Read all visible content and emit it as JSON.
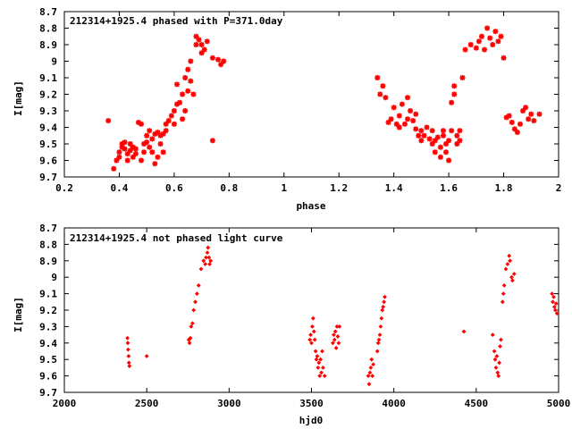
{
  "chart_data": [
    {
      "type": "scatter",
      "title": "212314+1925.4 phased with P=371.0day",
      "xlabel": "phase",
      "ylabel": "I[mag]",
      "xlim": [
        0.2,
        2
      ],
      "ylim": [
        9.7,
        8.7
      ],
      "y_inverted": true,
      "xticks": [
        "0.2",
        "0.4",
        "0.6",
        "0.8",
        "1",
        "1.2",
        "1.4",
        "1.6",
        "1.8",
        "2"
      ],
      "yticks": [
        "8.7",
        "8.8",
        "8.9",
        "9",
        "9.1",
        "9.2",
        "9.3",
        "9.4",
        "9.5",
        "9.6",
        "9.7"
      ],
      "marker_color": "#ff0000",
      "marker": "star",
      "grid": false,
      "points": [
        [
          0.36,
          9.36
        ],
        [
          0.38,
          9.65
        ],
        [
          0.39,
          9.6
        ],
        [
          0.4,
          9.58
        ],
        [
          0.4,
          9.55
        ],
        [
          0.41,
          9.52
        ],
        [
          0.41,
          9.5
        ],
        [
          0.42,
          9.53
        ],
        [
          0.42,
          9.49
        ],
        [
          0.43,
          9.56
        ],
        [
          0.43,
          9.6
        ],
        [
          0.44,
          9.54
        ],
        [
          0.44,
          9.5
        ],
        [
          0.45,
          9.52
        ],
        [
          0.45,
          9.58
        ],
        [
          0.46,
          9.56
        ],
        [
          0.46,
          9.53
        ],
        [
          0.47,
          9.37
        ],
        [
          0.48,
          9.38
        ],
        [
          0.48,
          9.6
        ],
        [
          0.49,
          9.55
        ],
        [
          0.49,
          9.5
        ],
        [
          0.5,
          9.49
        ],
        [
          0.5,
          9.45
        ],
        [
          0.51,
          9.52
        ],
        [
          0.51,
          9.42
        ],
        [
          0.52,
          9.55
        ],
        [
          0.52,
          9.47
        ],
        [
          0.53,
          9.62
        ],
        [
          0.53,
          9.44
        ],
        [
          0.54,
          9.58
        ],
        [
          0.54,
          9.43
        ],
        [
          0.55,
          9.45
        ],
        [
          0.55,
          9.5
        ],
        [
          0.56,
          9.44
        ],
        [
          0.56,
          9.55
        ],
        [
          0.57,
          9.38
        ],
        [
          0.57,
          9.42
        ],
        [
          0.58,
          9.36
        ],
        [
          0.59,
          9.33
        ],
        [
          0.6,
          9.3
        ],
        [
          0.6,
          9.38
        ],
        [
          0.61,
          9.14
        ],
        [
          0.61,
          9.26
        ],
        [
          0.62,
          9.25
        ],
        [
          0.63,
          9.2
        ],
        [
          0.63,
          9.35
        ],
        [
          0.64,
          9.1
        ],
        [
          0.64,
          9.3
        ],
        [
          0.65,
          9.05
        ],
        [
          0.65,
          9.18
        ],
        [
          0.66,
          9.0
        ],
        [
          0.66,
          9.12
        ],
        [
          0.67,
          9.2
        ],
        [
          0.68,
          8.9
        ],
        [
          0.68,
          8.85
        ],
        [
          0.69,
          8.87
        ],
        [
          0.7,
          8.95
        ],
        [
          0.7,
          8.9
        ],
        [
          0.71,
          8.93
        ],
        [
          0.72,
          8.88
        ],
        [
          0.74,
          8.98
        ],
        [
          0.74,
          9.48
        ],
        [
          0.76,
          8.99
        ],
        [
          0.77,
          9.02
        ],
        [
          0.78,
          9.0
        ],
        [
          1.34,
          9.1
        ],
        [
          1.35,
          9.2
        ],
        [
          1.36,
          9.15
        ],
        [
          1.37,
          9.22
        ],
        [
          1.38,
          9.37
        ],
        [
          1.39,
          9.35
        ],
        [
          1.4,
          9.28
        ],
        [
          1.41,
          9.38
        ],
        [
          1.42,
          9.4
        ],
        [
          1.42,
          9.33
        ],
        [
          1.43,
          9.26
        ],
        [
          1.44,
          9.38
        ],
        [
          1.45,
          9.35
        ],
        [
          1.45,
          9.22
        ],
        [
          1.46,
          9.3
        ],
        [
          1.47,
          9.36
        ],
        [
          1.48,
          9.41
        ],
        [
          1.48,
          9.32
        ],
        [
          1.49,
          9.45
        ],
        [
          1.5,
          9.42
        ],
        [
          1.5,
          9.48
        ],
        [
          1.51,
          9.45
        ],
        [
          1.52,
          9.4
        ],
        [
          1.53,
          9.47
        ],
        [
          1.54,
          9.42
        ],
        [
          1.54,
          9.5
        ],
        [
          1.55,
          9.55
        ],
        [
          1.55,
          9.48
        ],
        [
          1.56,
          9.46
        ],
        [
          1.57,
          9.52
        ],
        [
          1.57,
          9.58
        ],
        [
          1.58,
          9.45
        ],
        [
          1.58,
          9.42
        ],
        [
          1.59,
          9.5
        ],
        [
          1.59,
          9.55
        ],
        [
          1.6,
          9.6
        ],
        [
          1.6,
          9.48
        ],
        [
          1.61,
          9.42
        ],
        [
          1.61,
          9.25
        ],
        [
          1.62,
          9.2
        ],
        [
          1.62,
          9.15
        ],
        [
          1.63,
          9.45
        ],
        [
          1.63,
          9.5
        ],
        [
          1.64,
          9.42
        ],
        [
          1.64,
          9.48
        ],
        [
          1.65,
          9.1
        ],
        [
          1.66,
          8.93
        ],
        [
          1.68,
          8.9
        ],
        [
          1.7,
          8.92
        ],
        [
          1.71,
          8.88
        ],
        [
          1.72,
          8.85
        ],
        [
          1.73,
          8.93
        ],
        [
          1.74,
          8.8
        ],
        [
          1.75,
          8.86
        ],
        [
          1.76,
          8.9
        ],
        [
          1.77,
          8.82
        ],
        [
          1.78,
          8.88
        ],
        [
          1.79,
          8.85
        ],
        [
          1.8,
          8.98
        ],
        [
          1.81,
          9.34
        ],
        [
          1.82,
          9.33
        ],
        [
          1.83,
          9.37
        ],
        [
          1.84,
          9.41
        ],
        [
          1.85,
          9.43
        ],
        [
          1.86,
          9.38
        ],
        [
          1.87,
          9.3
        ],
        [
          1.88,
          9.28
        ],
        [
          1.89,
          9.35
        ],
        [
          1.9,
          9.32
        ],
        [
          1.91,
          9.36
        ],
        [
          1.93,
          9.32
        ]
      ]
    },
    {
      "type": "scatter",
      "title": "212314+1925.4 not phased light curve",
      "xlabel": "hjd0",
      "ylabel": "I[mag]",
      "xlim": [
        2000,
        5000
      ],
      "ylim": [
        9.7,
        8.7
      ],
      "y_inverted": true,
      "xticks": [
        "2000",
        "2500",
        "3000",
        "3500",
        "4000",
        "4500",
        "5000"
      ],
      "yticks": [
        "8.7",
        "8.8",
        "8.9",
        "9",
        "9.1",
        "9.2",
        "9.3",
        "9.4",
        "9.5",
        "9.6",
        "9.7"
      ],
      "marker_color": "#ff0000",
      "marker": "diamond",
      "grid": false,
      "points": [
        [
          2383,
          9.37
        ],
        [
          2385,
          9.4
        ],
        [
          2387,
          9.44
        ],
        [
          2390,
          9.48
        ],
        [
          2392,
          9.52
        ],
        [
          2395,
          9.54
        ],
        [
          2500,
          9.48
        ],
        [
          2755,
          9.38
        ],
        [
          2760,
          9.4
        ],
        [
          2765,
          9.37
        ],
        [
          2770,
          9.3
        ],
        [
          2778,
          9.28
        ],
        [
          2785,
          9.2
        ],
        [
          2795,
          9.15
        ],
        [
          2805,
          9.1
        ],
        [
          2815,
          9.05
        ],
        [
          2830,
          8.95
        ],
        [
          2845,
          8.9
        ],
        [
          2855,
          8.92
        ],
        [
          2860,
          8.88
        ],
        [
          2868,
          8.85
        ],
        [
          2872,
          8.82
        ],
        [
          2878,
          8.88
        ],
        [
          2882,
          8.92
        ],
        [
          2888,
          8.9
        ],
        [
          3490,
          9.38
        ],
        [
          3495,
          9.35
        ],
        [
          3500,
          9.4
        ],
        [
          3505,
          9.3
        ],
        [
          3510,
          9.25
        ],
        [
          3515,
          9.33
        ],
        [
          3520,
          9.38
        ],
        [
          3525,
          9.45
        ],
        [
          3530,
          9.5
        ],
        [
          3535,
          9.48
        ],
        [
          3540,
          9.55
        ],
        [
          3545,
          9.52
        ],
        [
          3550,
          9.6
        ],
        [
          3555,
          9.5
        ],
        [
          3560,
          9.58
        ],
        [
          3565,
          9.45
        ],
        [
          3570,
          9.55
        ],
        [
          3580,
          9.6
        ],
        [
          3630,
          9.4
        ],
        [
          3635,
          9.35
        ],
        [
          3640,
          9.38
        ],
        [
          3645,
          9.33
        ],
        [
          3650,
          9.43
        ],
        [
          3655,
          9.3
        ],
        [
          3660,
          9.36
        ],
        [
          3665,
          9.4
        ],
        [
          3670,
          9.3
        ],
        [
          3845,
          9.6
        ],
        [
          3850,
          9.65
        ],
        [
          3855,
          9.58
        ],
        [
          3860,
          9.55
        ],
        [
          3865,
          9.5
        ],
        [
          3870,
          9.6
        ],
        [
          3875,
          9.53
        ],
        [
          3900,
          9.45
        ],
        [
          3905,
          9.4
        ],
        [
          3910,
          9.38
        ],
        [
          3915,
          9.35
        ],
        [
          3920,
          9.3
        ],
        [
          3925,
          9.25
        ],
        [
          3930,
          9.2
        ],
        [
          3935,
          9.18
        ],
        [
          3940,
          9.15
        ],
        [
          3945,
          9.12
        ],
        [
          4425,
          9.33
        ],
        [
          4600,
          9.35
        ],
        [
          4610,
          9.45
        ],
        [
          4615,
          9.5
        ],
        [
          4620,
          9.55
        ],
        [
          4625,
          9.48
        ],
        [
          4630,
          9.58
        ],
        [
          4635,
          9.6
        ],
        [
          4640,
          9.52
        ],
        [
          4645,
          9.42
        ],
        [
          4650,
          9.38
        ],
        [
          4660,
          9.15
        ],
        [
          4665,
          9.1
        ],
        [
          4670,
          9.05
        ],
        [
          4680,
          8.95
        ],
        [
          4690,
          8.92
        ],
        [
          4700,
          8.87
        ],
        [
          4705,
          8.9
        ],
        [
          4715,
          9.0
        ],
        [
          4720,
          9.02
        ],
        [
          4730,
          8.98
        ],
        [
          4960,
          9.1
        ],
        [
          4965,
          9.15
        ],
        [
          4970,
          9.12
        ],
        [
          4975,
          9.18
        ],
        [
          4980,
          9.2
        ],
        [
          4985,
          9.16
        ],
        [
          4990,
          9.22
        ]
      ]
    }
  ]
}
